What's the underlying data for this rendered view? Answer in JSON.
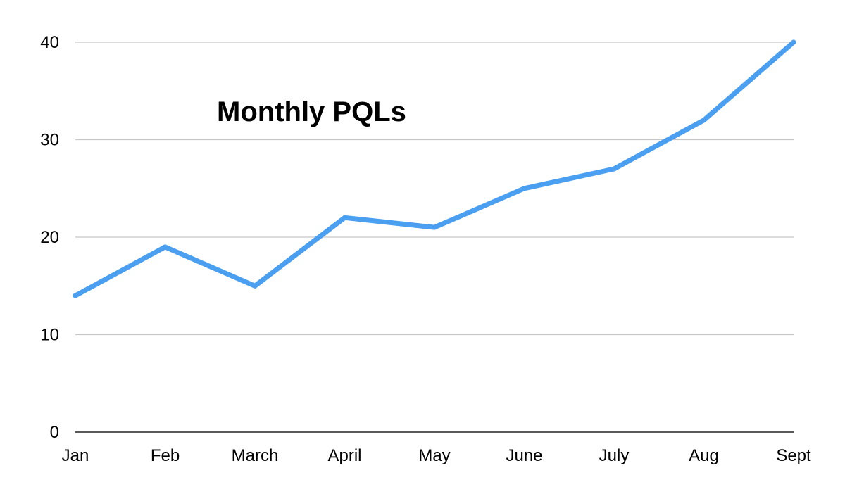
{
  "chart_data": {
    "type": "line",
    "title": "Monthly PQLs",
    "xlabel": "",
    "ylabel": "",
    "categories": [
      "Jan",
      "Feb",
      "March",
      "April",
      "May",
      "June",
      "July",
      "Aug",
      "Sept"
    ],
    "series": [
      {
        "values": [
          14,
          19,
          15,
          22,
          21,
          25,
          27,
          32,
          40
        ],
        "color": "#4a9ff0"
      }
    ],
    "ylim": [
      0,
      40
    ],
    "yticks": [
      0,
      10,
      20,
      30,
      40
    ],
    "grid": true,
    "legend": "none"
  }
}
